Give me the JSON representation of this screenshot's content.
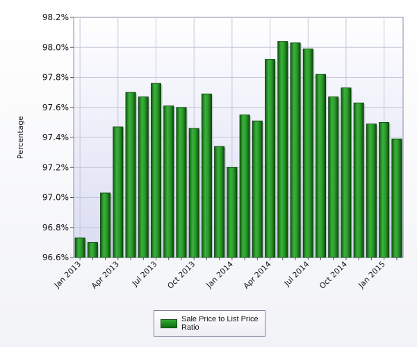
{
  "chart_data": {
    "type": "bar",
    "ylabel": "Percentage",
    "ylim": [
      96.6,
      98.2
    ],
    "yticks": [
      "96.6%",
      "96.8%",
      "97.0%",
      "97.2%",
      "97.4%",
      "97.6%",
      "97.8%",
      "98.0%",
      "98.2%"
    ],
    "categories": [
      "Jan 2013",
      "Feb 2013",
      "Mar 2013",
      "Apr 2013",
      "May 2013",
      "Jun 2013",
      "Jul 2013",
      "Aug 2013",
      "Sep 2013",
      "Oct 2013",
      "Nov 2013",
      "Dec 2013",
      "Jan 2014",
      "Feb 2014",
      "Mar 2014",
      "Apr 2014",
      "May 2014",
      "Jun 2014",
      "Jul 2014",
      "Aug 2014",
      "Sep 2014",
      "Oct 2014",
      "Nov 2014",
      "Dec 2014",
      "Jan 2015",
      "Feb 2015"
    ],
    "xtick_labels": [
      "Jan 2013",
      "Apr 2013",
      "Jul 2013",
      "Oct 2013",
      "Jan 2014",
      "Apr 2014",
      "Jul 2014",
      "Oct 2014",
      "Jan 2015"
    ],
    "series": [
      {
        "name": "Sale Price to List Price Ratio",
        "color": "#1e8c1e",
        "values": [
          96.73,
          96.7,
          97.03,
          97.47,
          97.7,
          97.67,
          97.76,
          97.61,
          97.6,
          97.46,
          97.69,
          97.34,
          97.2,
          97.55,
          97.51,
          97.92,
          98.04,
          98.03,
          97.99,
          97.82,
          97.67,
          97.73,
          97.63,
          97.49,
          97.5,
          97.39
        ]
      }
    ],
    "grid": true,
    "legend_position": "bottom"
  }
}
